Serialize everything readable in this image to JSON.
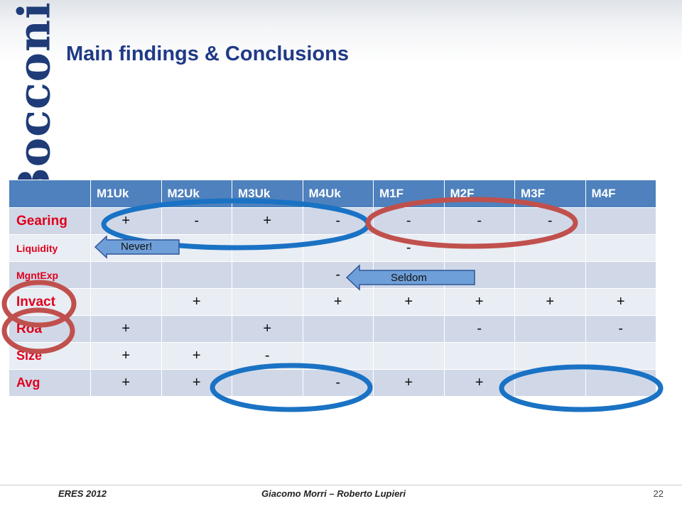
{
  "brand": {
    "logo_text": "Bocconi"
  },
  "slide": {
    "title": "Main findings & Conclusions"
  },
  "table": {
    "columns": [
      "",
      "M1Uk",
      "M2Uk",
      "M3Uk",
      "M4Uk",
      "M1F",
      "M2F",
      "M3F",
      "M4F"
    ],
    "rows": [
      {
        "label": "Gearing",
        "cells": [
          "+",
          "-",
          "+",
          "-",
          "-",
          "-",
          "-",
          ""
        ]
      },
      {
        "label": "Liquidity",
        "cells": [
          "",
          "",
          "",
          "",
          "-",
          "",
          "",
          ""
        ]
      },
      {
        "label": "MgntExp",
        "cells": [
          "",
          "",
          "",
          "-",
          "",
          "",
          "",
          ""
        ]
      },
      {
        "label": "Invact",
        "cells": [
          "",
          "+",
          "",
          "+",
          "+",
          "+",
          "+",
          "+"
        ]
      },
      {
        "label": "Roa",
        "cells": [
          "+",
          "",
          "+",
          "",
          "",
          "-",
          "",
          "-"
        ]
      },
      {
        "label": "Size",
        "cells": [
          "+",
          "+",
          "-",
          "",
          "",
          "",
          "",
          ""
        ]
      },
      {
        "label": "Avg",
        "cells": [
          "+",
          "+",
          "",
          "-",
          "+",
          "+",
          "",
          ""
        ]
      }
    ]
  },
  "annotations": {
    "never_label": "Never!",
    "seldom_label": "Seldom"
  },
  "colors": {
    "header_blue": "#4e81bd",
    "ellipse_blue": "#1a72c4",
    "ellipse_red": "#c0504d",
    "label_red": "#e0001a"
  },
  "footer": {
    "left": "ERES 2012",
    "center": "Giacomo Morri – Roberto Lupieri",
    "page": "22"
  }
}
